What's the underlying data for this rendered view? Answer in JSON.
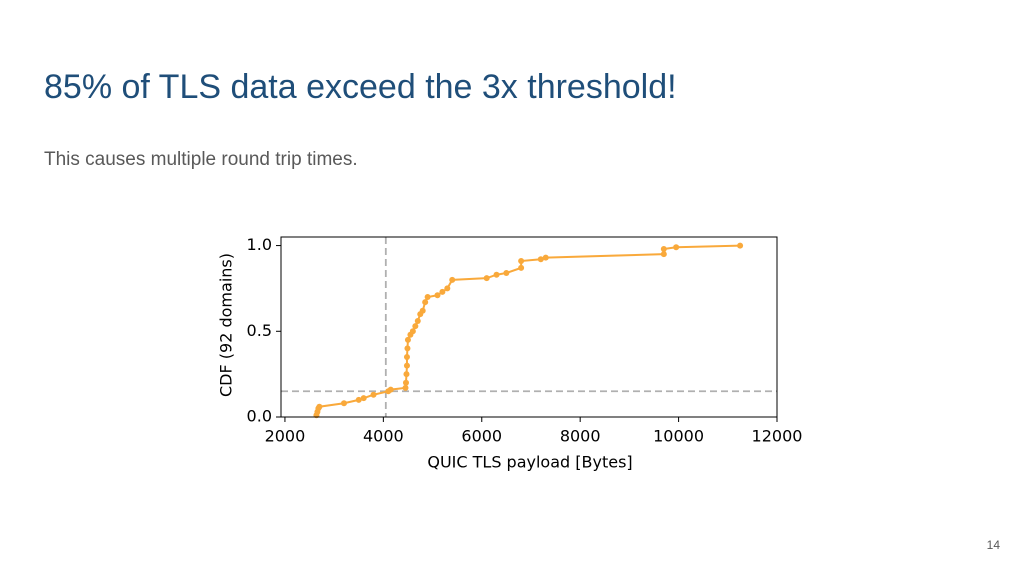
{
  "slide": {
    "title": "85% of TLS data exceed the 3x threshold!",
    "subtitle": "This causes multiple round trip times.",
    "page_number": "14"
  },
  "chart_data": {
    "type": "line",
    "x_label": "QUIC TLS payload [Bytes]",
    "y_label": "CDF (92 domains)",
    "x": [
      2640,
      2660,
      2680,
      2700,
      3200,
      3500,
      3600,
      3800,
      4100,
      4150,
      4450,
      4460,
      4470,
      4480,
      4480,
      4490,
      4500,
      4550,
      4600,
      4650,
      4700,
      4750,
      4800,
      4850,
      4900,
      5100,
      5200,
      5300,
      5400,
      6100,
      6300,
      6500,
      6800,
      6800,
      7200,
      7300,
      9700,
      9700,
      9950,
      11250
    ],
    "series": [
      {
        "color": "#f9a93b",
        "values": [
          0.01,
          0.03,
          0.05,
          0.06,
          0.08,
          0.1,
          0.11,
          0.13,
          0.15,
          0.16,
          0.17,
          0.2,
          0.25,
          0.3,
          0.35,
          0.4,
          0.45,
          0.48,
          0.5,
          0.53,
          0.56,
          0.6,
          0.62,
          0.67,
          0.7,
          0.71,
          0.73,
          0.75,
          0.8,
          0.81,
          0.83,
          0.84,
          0.87,
          0.91,
          0.92,
          0.93,
          0.95,
          0.98,
          0.99,
          1.0
        ]
      }
    ],
    "reference_lines": {
      "x": 4050,
      "y": 0.15,
      "color": "#b0b0b0"
    },
    "xlim": [
      1920,
      12000
    ],
    "xticks": [
      2000,
      4000,
      6000,
      8000,
      10000,
      12000
    ],
    "ylim": [
      0,
      1.05
    ],
    "yticks": [
      {
        "value": 0,
        "label": "0.0"
      },
      {
        "value": 0.5,
        "label": "0.5"
      },
      {
        "value": 1,
        "label": "1.0"
      }
    ]
  }
}
